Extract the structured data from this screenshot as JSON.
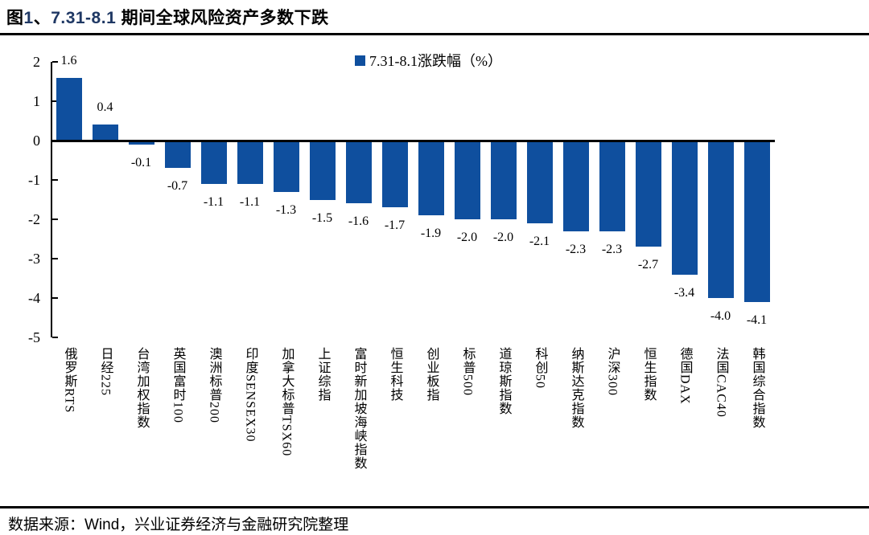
{
  "header": {
    "title_segments": [
      {
        "text": "图",
        "color": "#000000"
      },
      {
        "text": "1",
        "color": "#1F3864"
      },
      {
        "text": "、",
        "color": "#000000"
      },
      {
        "text": "7.31-8.1",
        "color": "#1F3864"
      },
      {
        "text": " 期间全球风险资产多数下跌",
        "color": "#000000"
      }
    ]
  },
  "legend": {
    "marker_color": "#0F4F9E",
    "label": "7.31-8.1涨跌幅（%）"
  },
  "chart_data": {
    "type": "bar",
    "title": "图1、7.31-8.1 期间全球风险资产多数下跌",
    "legend": [
      "7.31-8.1涨跌幅（%）"
    ],
    "legend_position": "top-center",
    "categories": [
      "俄罗斯RTS",
      "日经225",
      "台湾加权指数",
      "英国富时100",
      "澳洲标普200",
      "印度SENSEX30",
      "加拿大标普TSX60",
      "上证综指",
      "富时新加坡海峡指数",
      "恒生科技",
      "创业板指",
      "标普500",
      "道琼斯指数",
      "科创50",
      "纳斯达克指数",
      "沪深300",
      "恒生指数",
      "德国DAX",
      "法国CAC40",
      "韩国综合指数"
    ],
    "values": [
      1.6,
      0.4,
      -0.1,
      -0.7,
      -1.1,
      -1.1,
      -1.3,
      -1.5,
      -1.6,
      -1.7,
      -1.9,
      -2.0,
      -2.0,
      -2.1,
      -2.3,
      -2.3,
      -2.7,
      -3.4,
      -4.0,
      -4.1
    ],
    "value_label_decimals": 1,
    "xlabel": "",
    "ylabel": "",
    "ylim": [
      -5,
      2
    ],
    "yticks": [
      2,
      1,
      0,
      -1,
      -2,
      -3,
      -4,
      -5
    ],
    "grid": false,
    "bar_color": "#0F4F9E"
  },
  "footer": {
    "source_note": "数据来源：Wind，兴业证券经济与金融研究院整理"
  }
}
